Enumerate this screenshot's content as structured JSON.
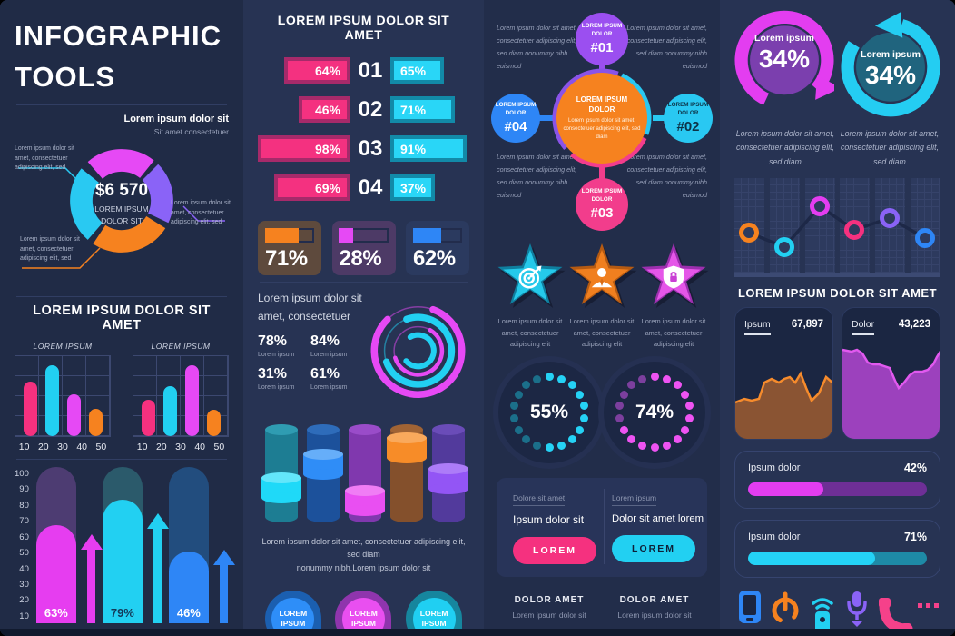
{
  "col1": {
    "title_line1": "INFOGRAPHIC",
    "title_line2": "TOOLS",
    "donut": {
      "callout_top_title": "Lorem ipsum dolor sit",
      "callout_top_sub": "Sit amet consectetuer",
      "center_value": "$6 570",
      "center_label_1": "LOREM IPSUM",
      "center_label_2": "DOLOR SIT",
      "callout_left": "Lorem ipsum dolor sit amet, consectetuer adipiscing elit, sed",
      "callout_right": "Lorem ipsum dolor sit amet, consectetuer adipiscing elit, sed",
      "callout_bottom": "Lorem ipsum dolor sit amet, consectetuer adipiscing elit, sed"
    },
    "charts_header": "LOREM IPSUM DOLOR SIT AMET",
    "mini_subtitle": "LOREM IPSUM",
    "mini_x_labels": [
      "10",
      "20",
      "30",
      "40",
      "50"
    ],
    "big_y_labels": [
      "100",
      "90",
      "80",
      "70",
      "60",
      "50",
      "40",
      "30",
      "20",
      "10"
    ],
    "big_values": [
      "63%",
      "79%",
      "46%"
    ]
  },
  "col2": {
    "header": "LOREM IPSUM DOLOR SIT AMET",
    "rows": [
      {
        "left": "64%",
        "num": "01",
        "right": "65%"
      },
      {
        "left": "46%",
        "num": "02",
        "right": "71%"
      },
      {
        "left": "98%",
        "num": "03",
        "right": "91%"
      },
      {
        "left": "69%",
        "num": "04",
        "right": "37%"
      }
    ],
    "cards": [
      "71%",
      "28%",
      "62%"
    ],
    "rings_text_1": "Lorem ipsum dolor sit",
    "rings_text_2": "amet, consectetuer",
    "stats": [
      {
        "value": "78%",
        "label": "Lorem ipsum"
      },
      {
        "value": "84%",
        "label": "Lorem ipsum"
      },
      {
        "value": "31%",
        "label": "Lorem ipsum"
      },
      {
        "value": "61%",
        "label": "Lorem ipsum"
      }
    ],
    "cylinders_caption_1": "Lorem ipsum dolor sit amet, consectetuer adipiscing elit, sed diam",
    "cylinders_caption_2": "nonummy nibh.Lorem ipsum dolor sit",
    "bubble_label_1": "LOREM",
    "bubble_label_2": "IPSUM"
  },
  "col3": {
    "corner_text": "Lorem ipsum dolor sit amet, consectetuer adipiscing elit, sed diam nonummy nibh euismod",
    "hub_title_1": "LOREM IPSUM",
    "hub_title_2": "DOLOR",
    "hub_sub": "Lorem ipsum dolor sit amet, consectetuer adipiscing elit, sed diam",
    "node_label_1": "LOREM IPSUM",
    "node_label_2": "DOLOR",
    "nodes": [
      {
        "id": "#01"
      },
      {
        "id": "#02"
      },
      {
        "id": "#03"
      },
      {
        "id": "#04"
      }
    ],
    "star_caption_1": "Lorem ipsum dolor sit",
    "star_caption_2": "amet, consectetuer",
    "star_caption_3": "adipiscing elit",
    "dotted": [
      "55%",
      "74%"
    ],
    "pricing": {
      "left_label": "Dolore sit amet",
      "left_title": "Ipsum dolor sit",
      "right_label": "Lorem ipsum",
      "right_title": "Dolor sit amet lorem",
      "button": "LOREM"
    },
    "footers": [
      {
        "title": "DOLOR AMET",
        "sub": "Lorem ipsum dolor sit"
      },
      {
        "title": "DOLOR AMET",
        "sub": "Lorem ipsum dolor sit"
      }
    ]
  },
  "col4": {
    "arrow_label": "Lorem ipsum",
    "arrow_values": [
      "34%",
      "34%"
    ],
    "arrow_caption": "Lorem ipsum dolor sit amet, consectetuer adipiscing elit, sed diam",
    "header": "LOREM IPSUM DOLOR SIT AMET",
    "area_cards": [
      {
        "label": "Ipsum",
        "value": "67,897"
      },
      {
        "label": "Dolor",
        "value": "43,223"
      }
    ],
    "progress": [
      {
        "label": "Ipsum dolor",
        "value": "42%"
      },
      {
        "label": "Ipsum dolor",
        "value": "71%"
      }
    ],
    "icons": [
      "smartphone-icon",
      "power-icon",
      "remote-icon",
      "microphone-icon",
      "phone-icon"
    ]
  },
  "colors": {
    "pink": "#f5317f",
    "magenta": "#e649f5",
    "cyan": "#22d0f2",
    "orange": "#f6821f",
    "purple": "#8a63f7",
    "blue": "#2e86f6",
    "bg_dark": "#202b46",
    "bg_light": "#273353"
  },
  "chart_data": [
    {
      "type": "pie",
      "title": "$6 570",
      "center_label": "LOREM IPSUM DOLOR SIT",
      "slices": [
        {
          "color": "#29c9f2",
          "value": 24
        },
        {
          "color": "#e649f5",
          "value": 22
        },
        {
          "color": "#8a63f7",
          "value": 19
        },
        {
          "color": "#f6821f",
          "value": 35
        }
      ]
    },
    {
      "type": "bar",
      "title": "LOREM IPSUM",
      "categories": [
        "10",
        "20",
        "30",
        "40",
        "50"
      ],
      "values": [
        68,
        88,
        52,
        34
      ],
      "ylim": [
        0,
        100
      ],
      "colors": [
        "#f5317f",
        "#22d0f2",
        "#e649f5",
        "#f6821f"
      ]
    },
    {
      "type": "bar",
      "title": "LOREM IPSUM",
      "categories": [
        "10",
        "20",
        "30",
        "40",
        "50"
      ],
      "values": [
        45,
        62,
        88,
        33
      ],
      "ylim": [
        0,
        100
      ],
      "colors": [
        "#f5317f",
        "#22d0f2",
        "#e649f5",
        "#f6821f"
      ]
    },
    {
      "type": "bar",
      "title": "arrow-bar-chart",
      "y_ticks": [
        10,
        20,
        30,
        40,
        50,
        60,
        70,
        80,
        90,
        100
      ],
      "values": [
        63,
        79,
        46
      ],
      "colors": [
        "#e63df0",
        "#22d0f2",
        "#2e86f6"
      ]
    },
    {
      "type": "bar",
      "orientation": "horizontal",
      "title": "paired-rank-bars",
      "rows": [
        {
          "rank": "01",
          "pink": 64,
          "cyan": 65
        },
        {
          "rank": "02",
          "pink": 46,
          "cyan": 71
        },
        {
          "rank": "03",
          "pink": 98,
          "cyan": 91
        },
        {
          "rank": "04",
          "pink": 69,
          "cyan": 37
        }
      ]
    },
    {
      "type": "progress",
      "title": "mini-cards",
      "values": [
        71,
        28,
        62
      ],
      "colors": [
        "#f6821f",
        "#e649f5",
        "#2e86f6"
      ]
    },
    {
      "type": "radial",
      "title": "concentric-rings",
      "values": [
        78,
        84,
        31,
        61
      ],
      "labels": [
        "Lorem ipsum",
        "Lorem ipsum",
        "Lorem ipsum",
        "Lorem ipsum"
      ]
    },
    {
      "type": "bar",
      "title": "cylinders",
      "values": [
        40,
        62,
        18,
        80,
        50
      ]
    },
    {
      "type": "diagram",
      "title": "hub-network",
      "center": "LOREM IPSUM DOLOR",
      "nodes": [
        "#01",
        "#02",
        "#03",
        "#04"
      ]
    },
    {
      "type": "progress",
      "title": "dotted-circles",
      "values": [
        55,
        74
      ]
    },
    {
      "type": "progress",
      "title": "circular-arrows",
      "values": [
        34,
        34
      ]
    },
    {
      "type": "line",
      "title": "ring-markers",
      "values": [
        42,
        28,
        72,
        46,
        60,
        36
      ],
      "colors": [
        "#f6821f",
        "#22d0f2",
        "#e649f5",
        "#f5317f",
        "#8a63f7",
        "#2e86f6"
      ]
    },
    {
      "type": "area",
      "series": [
        {
          "name": "Ipsum",
          "value": 67897
        },
        {
          "name": "Dolor",
          "value": 43223
        }
      ]
    },
    {
      "type": "progress",
      "title": "labelled-bars",
      "labels": [
        "Ipsum dolor",
        "Ipsum dolor"
      ],
      "values": [
        42,
        71
      ]
    }
  ]
}
